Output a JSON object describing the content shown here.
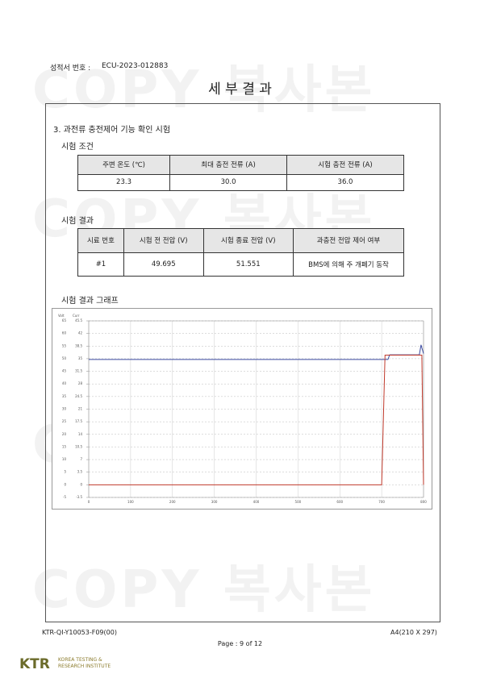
{
  "header": {
    "report_no_label": "성적서 번호 :",
    "report_no": "ECU-2023-012883",
    "title": "세 부 결 과"
  },
  "watermark": "COPY 복사본",
  "section": {
    "title": "3. 과전류 충전제어 기능 확인 시험",
    "conditions": {
      "label": "시험 조건",
      "headers": [
        "주변 온도 (℃)",
        "최대 충전 전류 (A)",
        "시험 충전 전류 (A)"
      ],
      "rows": [
        [
          "23.3",
          "30.0",
          "36.0"
        ]
      ]
    },
    "results": {
      "label": "시험 결과",
      "headers": [
        "시료 번호",
        "시험 전 전압 (V)",
        "시험 종료 전압 (V)",
        "과충전 전압 제어 여부"
      ],
      "rows": [
        [
          "#1",
          "49.695",
          "51.551",
          "BMS에 의해 주 개폐기 동작"
        ]
      ]
    },
    "graph_label": "시험 결과 그래프"
  },
  "chart_data": {
    "type": "line",
    "y_label": "Volt",
    "y2_label": "Curr",
    "xlim": [
      0,
      800
    ],
    "xticks": [
      0,
      100,
      200,
      300,
      400,
      500,
      600,
      700,
      800
    ],
    "ylim": [
      -5,
      65
    ],
    "yticks": [
      -5,
      0,
      5,
      10,
      15,
      20,
      25,
      30,
      35,
      40,
      45,
      50,
      55,
      60,
      65
    ],
    "y2lim": [
      -3.5,
      45.5
    ],
    "y2ticks": [
      -3.5,
      0,
      3.5,
      7,
      10.5,
      14,
      17.5,
      21,
      24.5,
      28,
      31.5,
      35,
      38.5,
      42,
      45.5
    ],
    "grid": true,
    "series": [
      {
        "name": "Volt",
        "color": "#3b4aa0",
        "x": [
          0,
          715,
          719,
          790,
          794,
          800
        ],
        "values": [
          49.695,
          49.695,
          51.551,
          51.551,
          55.5,
          52
        ]
      },
      {
        "name": "Curr",
        "color": "#c0392b",
        "axis": "y2",
        "x": [
          0,
          700,
          708,
          790,
          796,
          800
        ],
        "values": [
          0,
          0,
          36,
          36,
          36,
          0
        ]
      }
    ]
  },
  "footer": {
    "form_no": "KTR-QI-Y10053-F09(00)",
    "paper": "A4(210 X 297)",
    "page": "Page : 9 of 12",
    "logo": "KTR",
    "org_line1": "KOREA TESTING &",
    "org_line2": "RESEARCH INSTITUTE"
  }
}
